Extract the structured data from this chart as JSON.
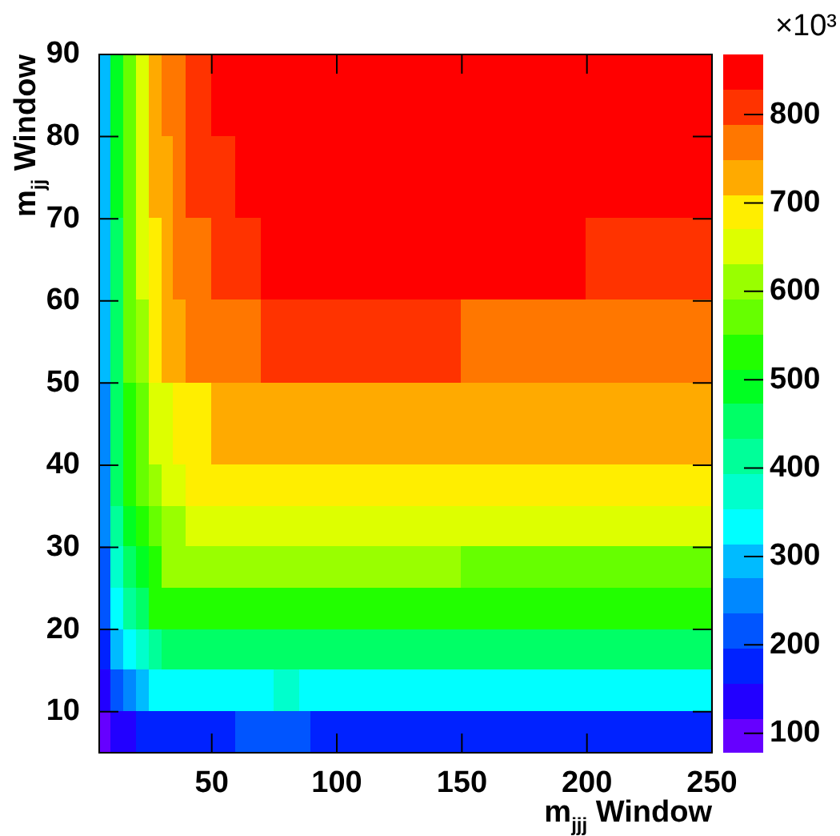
{
  "chart_data": {
    "type": "heatmap",
    "xlabel": "m$_{jjj}$ Window",
    "ylabel": "m$_{jj}$ Window",
    "clabel": "×10³",
    "xlim": [
      5,
      250
    ],
    "xticks": [
      50,
      100,
      150,
      200,
      250
    ],
    "ylim": [
      5,
      90
    ],
    "yticks": [
      10,
      20,
      30,
      40,
      50,
      60,
      70,
      80,
      90
    ],
    "clim": [
      78,
      868
    ],
    "cticks": [
      100,
      200,
      300,
      400,
      500,
      600,
      700,
      800
    ],
    "colors": [
      "#6600ff",
      "#2200ff",
      "#0022ff",
      "#0055ff",
      "#0088ff",
      "#00bbff",
      "#00ffff",
      "#00ffcc",
      "#00ff99",
      "#00ff66",
      "#00ff22",
      "#22ff00",
      "#66ff00",
      "#99ff00",
      "#ddff00",
      "#ffee00",
      "#ffaa00",
      "#ff7700",
      "#ff3300",
      "#ff0000"
    ],
    "cells": [
      [
        295,
        493,
        572,
        651,
        730,
        769,
        769,
        809,
        809,
        848,
        848,
        848,
        848,
        848,
        848,
        848,
        848,
        848,
        848,
        848,
        848,
        848,
        848,
        848,
        848,
        848,
        848,
        848,
        848,
        848,
        848,
        848,
        848,
        848,
        848,
        848,
        848,
        848,
        848,
        848,
        848,
        848,
        848,
        848,
        848,
        848,
        848,
        848,
        848
      ],
      [
        295,
        493,
        572,
        651,
        730,
        769,
        769,
        809,
        809,
        848,
        848,
        848,
        848,
        848,
        848,
        848,
        848,
        848,
        848,
        848,
        848,
        848,
        848,
        848,
        848,
        848,
        848,
        848,
        848,
        848,
        848,
        848,
        848,
        848,
        848,
        848,
        848,
        848,
        848,
        848,
        848,
        848,
        848,
        848,
        848,
        848,
        848,
        848,
        848
      ],
      [
        295,
        493,
        572,
        651,
        730,
        730,
        769,
        809,
        809,
        809,
        809,
        848,
        848,
        848,
        848,
        848,
        848,
        848,
        848,
        848,
        848,
        848,
        848,
        848,
        848,
        848,
        848,
        848,
        848,
        848,
        848,
        848,
        848,
        848,
        848,
        848,
        848,
        848,
        848,
        848,
        848,
        848,
        848,
        848,
        848,
        848,
        848,
        848,
        848
      ],
      [
        295,
        493,
        572,
        651,
        730,
        730,
        769,
        809,
        809,
        809,
        809,
        848,
        848,
        848,
        848,
        848,
        848,
        848,
        848,
        848,
        848,
        848,
        848,
        848,
        848,
        848,
        848,
        848,
        848,
        848,
        848,
        848,
        848,
        848,
        848,
        848,
        848,
        848,
        848,
        848,
        848,
        848,
        848,
        848,
        848,
        848,
        848,
        848,
        848
      ],
      [
        295,
        453,
        572,
        651,
        690,
        730,
        769,
        769,
        769,
        809,
        809,
        809,
        809,
        848,
        848,
        848,
        848,
        848,
        848,
        848,
        848,
        848,
        848,
        848,
        848,
        848,
        848,
        848,
        848,
        848,
        848,
        848,
        848,
        848,
        848,
        848,
        848,
        848,
        848,
        809,
        809,
        809,
        809,
        809,
        809,
        809,
        809,
        809,
        809
      ],
      [
        295,
        453,
        572,
        651,
        690,
        730,
        769,
        769,
        769,
        809,
        809,
        809,
        809,
        848,
        848,
        848,
        848,
        848,
        848,
        848,
        848,
        848,
        848,
        848,
        848,
        848,
        848,
        848,
        848,
        848,
        848,
        848,
        848,
        848,
        848,
        848,
        848,
        848,
        848,
        809,
        809,
        809,
        809,
        809,
        809,
        809,
        809,
        809,
        809
      ],
      [
        295,
        453,
        572,
        611,
        690,
        730,
        730,
        769,
        769,
        769,
        769,
        769,
        769,
        809,
        809,
        809,
        809,
        809,
        809,
        809,
        809,
        809,
        809,
        809,
        809,
        809,
        809,
        809,
        809,
        769,
        769,
        769,
        769,
        769,
        769,
        769,
        769,
        769,
        769,
        769,
        769,
        769,
        769,
        769,
        769,
        769,
        769,
        769,
        769
      ],
      [
        295,
        453,
        572,
        611,
        690,
        730,
        730,
        769,
        769,
        769,
        769,
        769,
        769,
        809,
        809,
        809,
        809,
        809,
        809,
        809,
        809,
        809,
        809,
        809,
        809,
        809,
        809,
        809,
        809,
        769,
        769,
        769,
        769,
        769,
        769,
        769,
        769,
        769,
        769,
        769,
        769,
        769,
        769,
        769,
        769,
        769,
        769,
        769,
        769
      ],
      [
        256,
        453,
        532,
        572,
        651,
        651,
        690,
        690,
        690,
        730,
        730,
        730,
        730,
        730,
        730,
        730,
        730,
        730,
        730,
        730,
        730,
        730,
        730,
        730,
        730,
        730,
        730,
        730,
        730,
        730,
        730,
        730,
        730,
        730,
        730,
        730,
        730,
        730,
        730,
        730,
        730,
        730,
        730,
        730,
        730,
        730,
        730,
        730,
        730
      ],
      [
        256,
        453,
        532,
        572,
        651,
        651,
        690,
        690,
        690,
        730,
        730,
        730,
        730,
        730,
        730,
        730,
        730,
        730,
        730,
        730,
        730,
        730,
        730,
        730,
        730,
        730,
        730,
        730,
        730,
        730,
        730,
        730,
        730,
        730,
        730,
        730,
        730,
        730,
        730,
        730,
        730,
        730,
        730,
        730,
        730,
        730,
        730,
        730,
        730
      ],
      [
        256,
        453,
        532,
        572,
        611,
        651,
        651,
        690,
        690,
        690,
        690,
        690,
        690,
        690,
        690,
        690,
        690,
        690,
        690,
        690,
        690,
        690,
        690,
        690,
        690,
        690,
        690,
        690,
        690,
        690,
        690,
        690,
        690,
        690,
        690,
        690,
        690,
        690,
        690,
        690,
        690,
        690,
        690,
        690,
        690,
        690,
        690,
        690,
        690
      ],
      [
        256,
        414,
        493,
        532,
        572,
        611,
        611,
        651,
        651,
        651,
        651,
        651,
        651,
        651,
        651,
        651,
        651,
        651,
        651,
        651,
        651,
        651,
        651,
        651,
        651,
        651,
        651,
        651,
        651,
        651,
        651,
        651,
        651,
        651,
        651,
        651,
        651,
        651,
        651,
        651,
        651,
        651,
        651,
        651,
        651,
        651,
        651,
        651,
        651
      ],
      [
        216,
        374,
        453,
        493,
        532,
        611,
        611,
        611,
        611,
        611,
        611,
        611,
        611,
        611,
        611,
        611,
        611,
        611,
        611,
        611,
        611,
        611,
        611,
        611,
        611,
        611,
        611,
        611,
        611,
        572,
        572,
        572,
        572,
        572,
        572,
        572,
        572,
        572,
        572,
        572,
        572,
        572,
        572,
        572,
        572,
        572,
        572,
        572,
        572
      ],
      [
        216,
        335,
        414,
        453,
        532,
        532,
        532,
        532,
        532,
        532,
        532,
        532,
        532,
        532,
        532,
        532,
        532,
        532,
        532,
        532,
        532,
        532,
        532,
        532,
        532,
        532,
        532,
        532,
        532,
        532,
        532,
        532,
        532,
        532,
        532,
        532,
        532,
        532,
        532,
        532,
        532,
        532,
        532,
        532,
        532,
        532,
        532,
        532,
        532
      ],
      [
        177,
        295,
        335,
        374,
        414,
        453,
        453,
        453,
        453,
        453,
        453,
        453,
        453,
        453,
        453,
        453,
        453,
        453,
        453,
        453,
        453,
        453,
        453,
        453,
        453,
        453,
        453,
        453,
        453,
        453,
        453,
        453,
        453,
        453,
        453,
        453,
        453,
        453,
        453,
        453,
        453,
        453,
        453,
        453,
        453,
        453,
        453,
        453,
        453
      ],
      [
        137,
        216,
        256,
        295,
        335,
        335,
        335,
        335,
        335,
        335,
        335,
        335,
        335,
        335,
        374,
        374,
        335,
        335,
        335,
        335,
        335,
        335,
        335,
        335,
        335,
        335,
        335,
        335,
        335,
        335,
        335,
        335,
        335,
        335,
        335,
        335,
        335,
        335,
        335,
        335,
        335,
        335,
        335,
        335,
        335,
        335,
        335,
        335,
        335
      ],
      [
        98,
        137,
        137,
        177,
        177,
        177,
        177,
        177,
        177,
        177,
        177,
        216,
        216,
        216,
        216,
        216,
        216,
        177,
        177,
        177,
        177,
        177,
        177,
        177,
        177,
        177,
        177,
        177,
        177,
        177,
        177,
        177,
        177,
        177,
        177,
        177,
        177,
        177,
        177,
        177,
        177,
        177,
        177,
        177,
        177,
        177,
        177,
        177,
        177
      ]
    ]
  }
}
